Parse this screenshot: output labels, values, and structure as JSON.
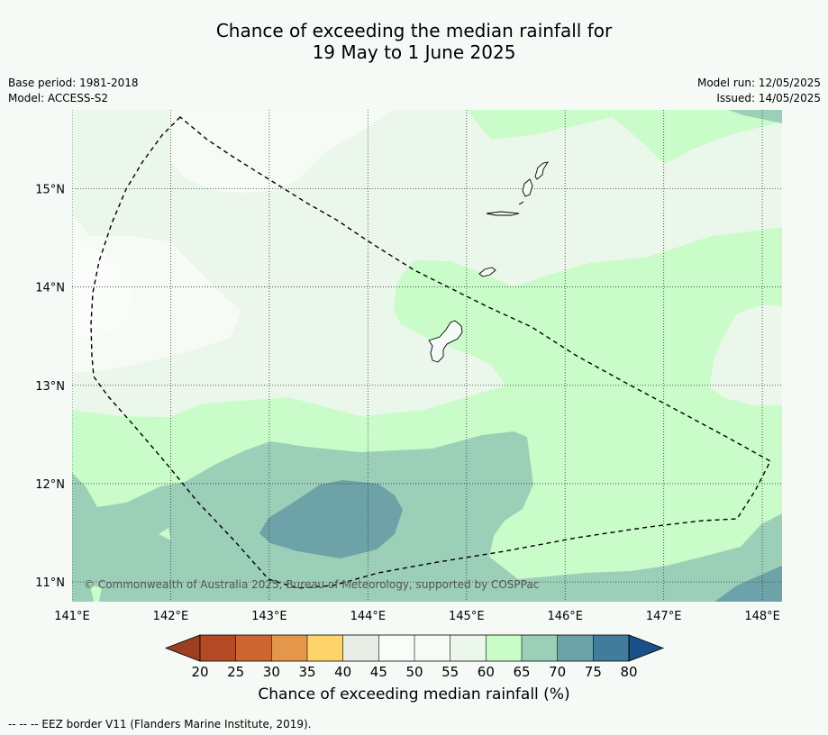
{
  "title": {
    "line1": "Chance of exceeding the median rainfall for",
    "line2": "19 May to 1 June 2025"
  },
  "info_left": {
    "base_period": "Base period: 1981-2018",
    "model": "Model: ACCESS-S2"
  },
  "info_right": {
    "model_run": "Model run: 12/05/2025",
    "issued": "Issued: 14/05/2025"
  },
  "map": {
    "lon_range": [
      141,
      148.2
    ],
    "lat_range": [
      10.8,
      15.8
    ],
    "lon_ticks": [
      "141°E",
      "142°E",
      "143°E",
      "144°E",
      "145°E",
      "146°E",
      "147°E",
      "148°E"
    ],
    "lat_ticks": [
      "15°N",
      "14°N",
      "13°N",
      "12°N",
      "11°N"
    ],
    "copyright": "© Commonwealth of Australia 2025, Bureau of Meteorology, supported by COSPPac"
  },
  "colorbar": {
    "ticks": [
      "20",
      "25",
      "30",
      "35",
      "40",
      "45",
      "50",
      "55",
      "60",
      "65",
      "70",
      "75",
      "80"
    ],
    "colors": [
      "#b24a26",
      "#cc6630",
      "#e4964a",
      "#fdd36a",
      "#e9ebe5",
      "#f9fcf9",
      "#f6fbf6",
      "#ebf7eb",
      "#c9fcc9",
      "#9ccfb8",
      "#6da3a8",
      "#417d9a"
    ],
    "under_color": "#9d3e22",
    "over_color": "#1b4f87",
    "title": "Chance of exceeding median rainfall (%)"
  },
  "legend": {
    "eez_line": "-- -- -- EEZ border V11 (Flanders Marine Institute, 2019)."
  }
}
